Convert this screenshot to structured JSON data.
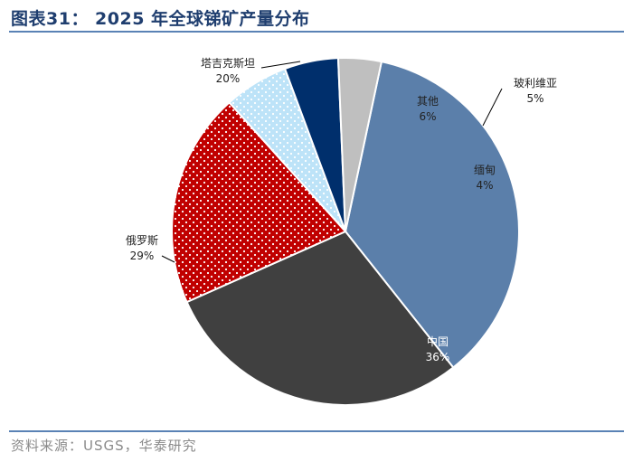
{
  "title": "图表31：  2025 年全球锑矿产量分布",
  "source": "资料来源：USGS，华泰研究",
  "chart_data": {
    "type": "pie",
    "title": "2025 年全球锑矿产量分布",
    "start_angle_deg": 78,
    "direction": "clockwise",
    "slices": [
      {
        "label": "中国",
        "value": 36,
        "value_label": "36%",
        "color": "#5b7faa",
        "pattern": "solid"
      },
      {
        "label": "俄罗斯",
        "value": 29,
        "value_label": "29%",
        "color": "#404040",
        "pattern": "solid"
      },
      {
        "label": "塔吉克斯坦",
        "value": 20,
        "value_label": "20%",
        "color": "#c00000",
        "pattern": "dots"
      },
      {
        "label": "其他",
        "value": 6,
        "value_label": "6%",
        "color": "#bde3f8",
        "pattern": "dots"
      },
      {
        "label": "玻利维亚",
        "value": 5,
        "value_label": "5%",
        "color": "#002f6c",
        "pattern": "solid"
      },
      {
        "label": "缅甸",
        "value": 4,
        "value_label": "4%",
        "color": "#bfbfbf",
        "pattern": "solid"
      }
    ]
  }
}
